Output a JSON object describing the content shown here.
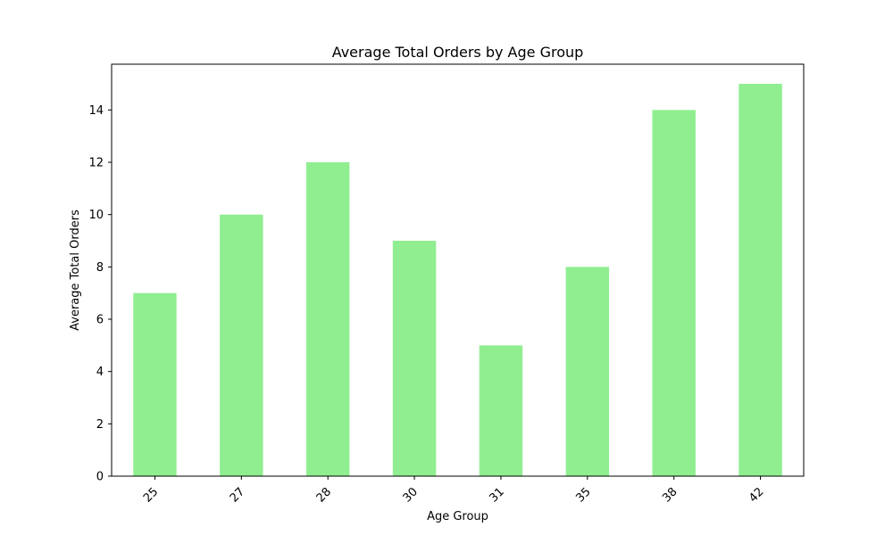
{
  "chart_data": {
    "type": "bar",
    "title": "Average Total Orders by Age Group",
    "xlabel": "Age Group",
    "ylabel": "Average Total Orders",
    "categories": [
      "25",
      "27",
      "28",
      "30",
      "31",
      "35",
      "38",
      "42"
    ],
    "values": [
      7,
      10,
      12,
      9,
      5,
      8,
      14,
      15
    ],
    "ylim": [
      0,
      15.75
    ],
    "yticks": [
      0,
      2,
      4,
      6,
      8,
      10,
      12,
      14
    ],
    "grid": false,
    "legend": "none",
    "bar_color": "#90EE90",
    "axis_color": "#000000",
    "background": "#ffffff"
  }
}
